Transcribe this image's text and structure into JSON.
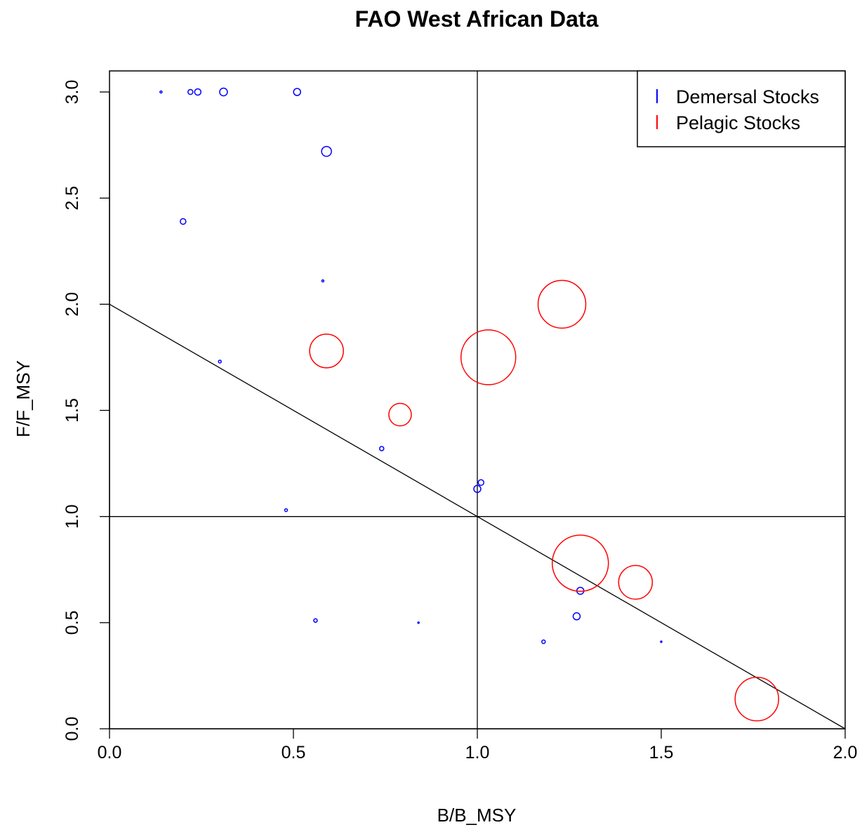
{
  "chart_data": {
    "type": "scatter",
    "title": "FAO West African Data",
    "xlabel": "B/B_MSY",
    "ylabel": "F/F_MSY",
    "xlim": [
      0,
      2
    ],
    "ylim": [
      0,
      3
    ],
    "x_ticks": [
      "0.0",
      "0.5",
      "1.0",
      "1.5",
      "2.0"
    ],
    "y_ticks": [
      "0.0",
      "0.5",
      "1.0",
      "1.5",
      "2.0",
      "2.5",
      "3.0"
    ],
    "legend_position": "top-right",
    "reference_lines": [
      {
        "type": "vertical",
        "x": 1.0
      },
      {
        "type": "horizontal",
        "y": 1.0
      },
      {
        "type": "segment",
        "from": [
          0,
          2
        ],
        "to": [
          2,
          0
        ]
      }
    ],
    "series": [
      {
        "name": "Demersal Stocks",
        "color": "#0000ff",
        "points": [
          {
            "x": 0.14,
            "y": 3.0,
            "r": 1.5
          },
          {
            "x": 0.22,
            "y": 3.0,
            "r": 3.5
          },
          {
            "x": 0.24,
            "y": 3.0,
            "r": 4.5
          },
          {
            "x": 0.31,
            "y": 3.0,
            "r": 5.5
          },
          {
            "x": 0.51,
            "y": 3.0,
            "r": 5
          },
          {
            "x": 0.59,
            "y": 2.72,
            "r": 7
          },
          {
            "x": 0.2,
            "y": 2.39,
            "r": 4
          },
          {
            "x": 0.58,
            "y": 2.11,
            "r": 1.5
          },
          {
            "x": 0.3,
            "y": 1.73,
            "r": 2
          },
          {
            "x": 0.74,
            "y": 1.32,
            "r": 3
          },
          {
            "x": 1.0,
            "y": 1.13,
            "r": 5
          },
          {
            "x": 1.01,
            "y": 1.16,
            "r": 4
          },
          {
            "x": 0.48,
            "y": 1.03,
            "r": 2
          },
          {
            "x": 0.56,
            "y": 0.51,
            "r": 2.5
          },
          {
            "x": 0.84,
            "y": 0.5,
            "r": 1
          },
          {
            "x": 1.28,
            "y": 0.65,
            "r": 5
          },
          {
            "x": 1.27,
            "y": 0.53,
            "r": 5
          },
          {
            "x": 1.18,
            "y": 0.41,
            "r": 2.5
          },
          {
            "x": 1.5,
            "y": 0.41,
            "r": 1
          }
        ]
      },
      {
        "name": "Pelagic Stocks",
        "color": "#ff0000",
        "points": [
          {
            "x": 1.23,
            "y": 2.0,
            "r": 34
          },
          {
            "x": 1.03,
            "y": 1.75,
            "r": 39
          },
          {
            "x": 0.59,
            "y": 1.78,
            "r": 24
          },
          {
            "x": 0.79,
            "y": 1.48,
            "r": 16
          },
          {
            "x": 1.28,
            "y": 0.78,
            "r": 40
          },
          {
            "x": 1.43,
            "y": 0.69,
            "r": 24
          },
          {
            "x": 1.76,
            "y": 0.14,
            "r": 31
          }
        ]
      }
    ]
  }
}
